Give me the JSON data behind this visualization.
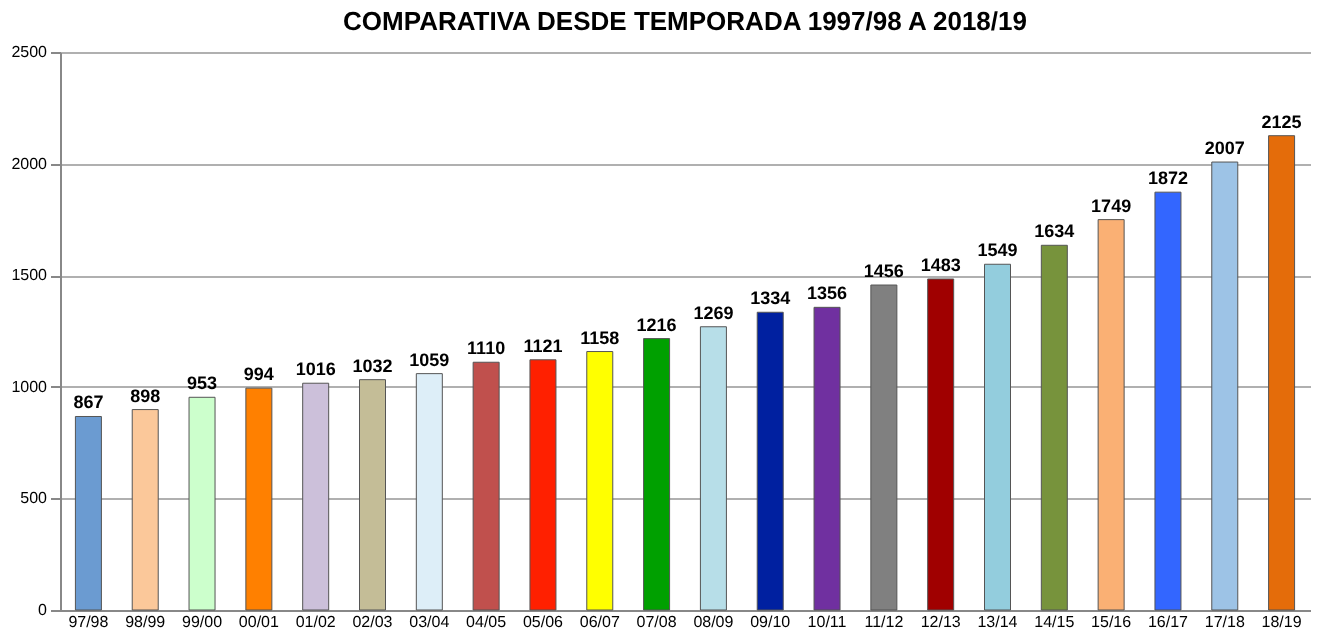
{
  "chart_data": {
    "type": "bar",
    "title": "COMPARATIVA DESDE TEMPORADA 1997/98 A 2018/19",
    "categories": [
      "97/98",
      "98/99",
      "99/00",
      "00/01",
      "01/02",
      "02/03",
      "03/04",
      "04/05",
      "05/06",
      "06/07",
      "07/08",
      "08/09",
      "09/10",
      "10/11",
      "11/12",
      "12/13",
      "13/14",
      "14/15",
      "15/16",
      "16/17",
      "17/18",
      "18/19"
    ],
    "values": [
      867,
      898,
      953,
      994,
      1016,
      1032,
      1059,
      1110,
      1121,
      1158,
      1216,
      1269,
      1334,
      1356,
      1456,
      1483,
      1549,
      1634,
      1749,
      1872,
      2007,
      2125
    ],
    "colors": [
      "#6b9bd1",
      "#fbc89a",
      "#ccffcc",
      "#ff8000",
      "#ccc0da",
      "#c4bd97",
      "#ddeef8",
      "#c0504d",
      "#ff2000",
      "#ffff00",
      "#00a000",
      "#b7dee8",
      "#0020a0",
      "#7030a0",
      "#808080",
      "#a00000",
      "#93cddd",
      "#77933c",
      "#fab074",
      "#3366ff",
      "#9dc3e6",
      "#e46c0a"
    ],
    "ylim": [
      0,
      2500
    ],
    "yticks": [
      0,
      500,
      1000,
      1500,
      2000,
      2500
    ],
    "grid": "y",
    "data_labels": true
  }
}
